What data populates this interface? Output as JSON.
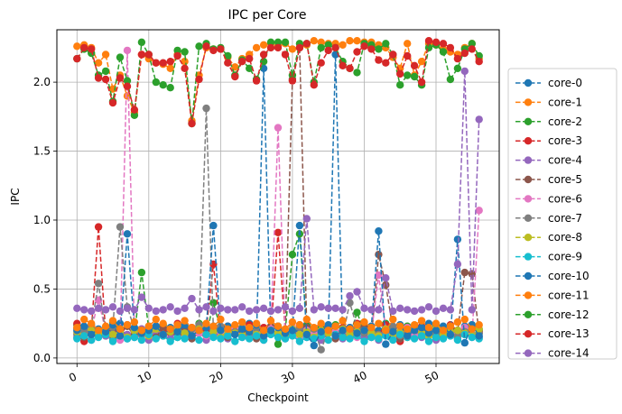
{
  "chart_data": {
    "type": "line",
    "title": "IPC per Core",
    "xlabel": "Checkpoint",
    "ylabel": "IPC",
    "xlim": [
      -2.8,
      58.8
    ],
    "ylim": [
      -0.04,
      2.38
    ],
    "xticks": [
      0,
      10,
      20,
      30,
      40,
      50
    ],
    "yticks": [
      0.0,
      0.5,
      1.0,
      1.5,
      2.0
    ],
    "ytick_labels": [
      "0.0",
      "0.5",
      "1.0",
      "1.5",
      "2.0"
    ],
    "grid": true,
    "legend_position": "right-outside",
    "series": [
      {
        "name": "core-0",
        "color": "#1f77b4",
        "values": [
          0.21,
          0.19,
          0.24,
          0.16,
          0.22,
          0.18,
          0.25,
          0.14,
          0.21,
          0.19,
          0.23,
          0.15,
          0.2,
          0.22,
          0.18,
          0.24,
          0.16,
          0.21,
          0.19,
          0.23,
          0.17,
          0.2,
          0.22,
          0.18,
          0.25,
          0.15,
          2.1,
          0.19,
          0.23,
          0.16,
          0.21,
          0.2,
          0.24,
          0.17,
          0.22,
          0.18,
          2.2,
          0.15,
          0.21,
          0.19,
          0.23,
          0.16,
          0.2,
          0.22,
          0.18,
          0.24,
          0.17,
          0.21,
          0.19,
          0.25,
          0.15,
          0.2,
          0.22,
          0.18,
          0.23,
          0.16,
          0.21
        ]
      },
      {
        "name": "core-1",
        "color": "#ff7f0e",
        "values": [
          2.26,
          2.27,
          2.25,
          2.14,
          2.2,
          1.95,
          2.05,
          1.9,
          1.78,
          2.2,
          2.17,
          2.14,
          2.13,
          2.1,
          2.2,
          2.15,
          1.72,
          2.05,
          2.25,
          2.24,
          2.24,
          2.18,
          2.11,
          2.17,
          2.2,
          2.25,
          2.27,
          2.28,
          2.26,
          2.28,
          2.24,
          2.25,
          2.27,
          2.3,
          2.29,
          2.28,
          2.28,
          2.27,
          2.3,
          2.3,
          2.29,
          2.29,
          2.27,
          2.25,
          2.18,
          2.1,
          2.28,
          2.05,
          2.15,
          2.28,
          2.27,
          2.24,
          2.22,
          2.2,
          2.25,
          2.28,
          2.17
        ]
      },
      {
        "name": "core-2",
        "color": "#2ca02c",
        "values": [
          0.24,
          0.18,
          0.22,
          0.2,
          0.16,
          0.26,
          0.19,
          0.23,
          0.17,
          0.62,
          0.21,
          0.18,
          0.24,
          0.2,
          0.15,
          0.22,
          0.19,
          0.25,
          0.16,
          0.4,
          0.21,
          0.18,
          0.23,
          0.2,
          0.17,
          0.24,
          0.19,
          0.22,
          0.1,
          0.2,
          0.75,
          0.9,
          0.23,
          0.17,
          0.21,
          0.18,
          0.24,
          0.2,
          0.16,
          0.33,
          0.19,
          0.22,
          0.17,
          0.25,
          0.2,
          0.18,
          0.23,
          0.15,
          0.21,
          0.19,
          0.24,
          0.17,
          0.22,
          0.2,
          0.18,
          0.24,
          0.2
        ]
      },
      {
        "name": "core-3",
        "color": "#d62728",
        "values": [
          0.25,
          0.12,
          0.2,
          0.95,
          0.18,
          0.22,
          0.16,
          0.24,
          0.19,
          0.21,
          0.17,
          0.23,
          0.2,
          0.18,
          0.25,
          0.16,
          0.22,
          0.19,
          0.21,
          0.68,
          0.17,
          0.23,
          0.2,
          0.18,
          0.24,
          0.16,
          0.22,
          0.19,
          0.91,
          0.2,
          0.18,
          0.24,
          0.17,
          0.21,
          0.2,
          0.23,
          0.16,
          0.22,
          0.19,
          0.25,
          0.18,
          0.21,
          0.17,
          0.24,
          0.2,
          0.12,
          0.22,
          0.19,
          0.23,
          0.16,
          0.21,
          0.18,
          0.24,
          0.2,
          0.17,
          0.22,
          0.19
        ]
      },
      {
        "name": "core-4",
        "color": "#9467bd",
        "values": [
          0.15,
          0.18,
          0.13,
          0.2,
          0.16,
          0.14,
          0.19,
          0.17,
          0.15,
          0.21,
          0.13,
          0.18,
          0.16,
          0.14,
          0.2,
          0.17,
          0.15,
          0.19,
          0.13,
          0.18,
          0.16,
          0.14,
          0.21,
          0.17,
          0.15,
          0.19,
          0.13,
          0.18,
          0.16,
          0.14,
          0.2,
          0.17,
          0.15,
          0.19,
          0.13,
          0.18,
          0.16,
          0.14,
          0.21,
          0.17,
          0.15,
          0.19,
          0.13,
          0.18,
          0.16,
          0.14,
          0.2,
          0.17,
          0.15,
          0.19,
          0.13,
          0.18,
          0.16,
          0.14,
          0.21,
          0.17,
          0.15
        ]
      },
      {
        "name": "core-5",
        "color": "#8c564b",
        "values": [
          0.22,
          0.15,
          0.19,
          0.17,
          0.21,
          0.14,
          0.18,
          0.23,
          0.16,
          0.2,
          0.18,
          0.15,
          0.22,
          0.19,
          0.17,
          0.21,
          0.14,
          0.18,
          0.16,
          0.2,
          0.22,
          0.15,
          0.19,
          0.17,
          0.21,
          0.14,
          0.18,
          0.23,
          0.16,
          0.2,
          2.02,
          2.25,
          0.22,
          0.19,
          0.17,
          0.21,
          0.14,
          0.18,
          0.16,
          0.2,
          0.22,
          0.15,
          0.75,
          0.53,
          0.21,
          0.14,
          0.18,
          0.23,
          0.16,
          0.2,
          0.18,
          0.15,
          0.22,
          0.19,
          0.62,
          0.61,
          0.18
        ]
      },
      {
        "name": "core-6",
        "color": "#e377c2",
        "values": [
          0.18,
          0.22,
          0.2,
          0.42,
          0.19,
          0.17,
          0.13,
          2.23,
          0.2,
          0.16,
          0.18,
          0.21,
          0.17,
          0.19,
          0.22,
          0.15,
          0.2,
          0.18,
          0.16,
          0.21,
          0.19,
          0.17,
          0.22,
          0.15,
          0.2,
          0.18,
          0.16,
          0.21,
          1.67,
          0.17,
          0.22,
          0.15,
          0.2,
          0.18,
          0.16,
          0.21,
          0.19,
          0.17,
          0.22,
          0.15,
          0.2,
          0.18,
          0.6,
          0.21,
          0.19,
          0.17,
          0.22,
          0.15,
          0.2,
          0.18,
          0.16,
          0.21,
          0.19,
          0.17,
          0.22,
          0.15,
          1.07
        ]
      },
      {
        "name": "core-7",
        "color": "#7f7f7f",
        "values": [
          0.17,
          0.2,
          0.23,
          0.54,
          0.18,
          0.22,
          0.95,
          0.37,
          0.21,
          0.17,
          0.2,
          0.23,
          0.16,
          0.19,
          0.22,
          0.18,
          0.21,
          0.24,
          1.81,
          0.2,
          0.23,
          0.16,
          0.19,
          0.22,
          0.18,
          0.21,
          0.17,
          0.2,
          0.23,
          0.16,
          0.19,
          0.22,
          0.18,
          0.21,
          0.06,
          0.2,
          0.23,
          0.16,
          0.4,
          0.22,
          0.18,
          0.21,
          0.17,
          0.2,
          0.23,
          0.16,
          0.19,
          0.22,
          0.18,
          0.21,
          0.17,
          0.2,
          0.23,
          0.16,
          0.19,
          0.22,
          0.18
        ]
      },
      {
        "name": "core-8",
        "color": "#bcbd22",
        "values": [
          0.19,
          0.16,
          0.2,
          0.18,
          0.21,
          0.17,
          0.19,
          0.15,
          0.2,
          0.18,
          0.16,
          0.21,
          0.17,
          0.19,
          0.2,
          0.18,
          0.16,
          0.21,
          0.17,
          0.19,
          0.15,
          0.2,
          0.18,
          0.16,
          0.21,
          0.17,
          0.19,
          0.2,
          0.18,
          0.16,
          0.21,
          0.17,
          0.19,
          0.15,
          0.2,
          0.18,
          0.16,
          0.21,
          0.17,
          0.19,
          0.2,
          0.18,
          0.16,
          0.21,
          0.17,
          0.19,
          0.15,
          0.2,
          0.18,
          0.16,
          0.21,
          0.17,
          0.19,
          0.2,
          0.18,
          0.16,
          0.21
        ]
      },
      {
        "name": "core-9",
        "color": "#17becf",
        "values": [
          0.14,
          0.16,
          0.13,
          0.15,
          0.17,
          0.12,
          0.16,
          0.14,
          0.15,
          0.13,
          0.17,
          0.14,
          0.16,
          0.12,
          0.15,
          0.14,
          0.16,
          0.13,
          0.17,
          0.15,
          0.14,
          0.16,
          0.12,
          0.15,
          0.14,
          0.16,
          0.13,
          0.17,
          0.15,
          0.14,
          0.16,
          0.12,
          0.15,
          0.14,
          0.16,
          0.13,
          0.17,
          0.15,
          0.14,
          0.16,
          0.12,
          0.15,
          0.14,
          0.16,
          0.13,
          0.17,
          0.15,
          0.14,
          0.16,
          0.12,
          0.15,
          0.14,
          0.16,
          0.13,
          0.17,
          0.15,
          0.14
        ]
      },
      {
        "name": "core-10",
        "color": "#1f77b4",
        "values": [
          0.2,
          0.23,
          0.17,
          0.21,
          0.19,
          0.24,
          0.16,
          0.9,
          0.22,
          0.18,
          0.2,
          0.23,
          0.17,
          0.21,
          0.19,
          0.24,
          0.16,
          0.2,
          0.22,
          0.96,
          0.2,
          0.23,
          0.17,
          0.21,
          0.19,
          0.24,
          0.16,
          0.2,
          0.22,
          0.18,
          0.2,
          0.96,
          0.17,
          0.09,
          0.19,
          0.24,
          0.16,
          0.2,
          0.22,
          0.18,
          0.2,
          0.23,
          0.92,
          0.1,
          0.19,
          0.24,
          0.16,
          0.2,
          0.22,
          0.18,
          0.2,
          0.23,
          0.17,
          0.86,
          0.11,
          0.24,
          0.16
        ]
      },
      {
        "name": "core-11",
        "color": "#ff7f0e",
        "values": [
          0.22,
          0.28,
          0.25,
          0.2,
          0.23,
          0.27,
          0.21,
          0.24,
          0.26,
          0.2,
          0.23,
          0.28,
          0.25,
          0.21,
          0.24,
          0.27,
          0.22,
          0.2,
          0.25,
          0.23,
          0.28,
          0.21,
          0.24,
          0.26,
          0.22,
          0.25,
          0.2,
          0.27,
          0.23,
          0.21,
          0.26,
          0.24,
          0.28,
          0.22,
          0.25,
          0.2,
          0.23,
          0.27,
          0.21,
          0.24,
          0.26,
          0.22,
          0.25,
          0.2,
          0.28,
          0.23,
          0.21,
          0.24,
          0.27,
          0.22,
          0.25,
          0.2,
          0.23,
          0.26,
          0.28,
          0.21,
          0.24
        ]
      },
      {
        "name": "core-12",
        "color": "#2ca02c",
        "values": [
          2.17,
          2.24,
          2.21,
          2.05,
          2.08,
          1.86,
          2.18,
          2.01,
          1.76,
          2.29,
          2.2,
          2.0,
          1.98,
          1.96,
          2.23,
          2.22,
          1.7,
          2.26,
          2.28,
          2.24,
          2.25,
          2.19,
          2.05,
          2.16,
          2.1,
          2.02,
          2.15,
          2.29,
          2.29,
          2.29,
          2.05,
          2.28,
          2.28,
          2.0,
          2.25,
          2.27,
          2.25,
          2.15,
          2.1,
          2.07,
          2.28,
          2.27,
          2.24,
          2.28,
          2.2,
          1.98,
          2.05,
          2.04,
          1.98,
          2.25,
          2.27,
          2.22,
          2.02,
          2.1,
          2.24,
          2.28,
          2.19
        ]
      },
      {
        "name": "core-13",
        "color": "#d62728",
        "values": [
          2.17,
          2.25,
          2.24,
          2.03,
          2.02,
          1.85,
          2.03,
          1.97,
          1.8,
          2.2,
          2.2,
          2.14,
          2.14,
          2.15,
          2.19,
          2.1,
          1.7,
          2.02,
          2.26,
          2.23,
          2.24,
          2.14,
          2.04,
          2.15,
          2.17,
          2.01,
          2.2,
          2.25,
          2.25,
          2.2,
          2.01,
          2.25,
          2.28,
          1.98,
          2.14,
          2.23,
          2.25,
          2.12,
          2.1,
          2.22,
          2.26,
          2.24,
          2.16,
          2.14,
          2.2,
          2.06,
          2.19,
          2.12,
          2.0,
          2.3,
          2.29,
          2.28,
          2.25,
          2.17,
          2.21,
          2.24,
          2.15
        ]
      },
      {
        "name": "core-14",
        "color": "#9467bd",
        "values": [
          0.36,
          0.35,
          0.34,
          0.36,
          0.35,
          0.37,
          0.34,
          0.36,
          0.35,
          0.44,
          0.36,
          0.34,
          0.35,
          0.37,
          0.34,
          0.36,
          0.43,
          0.35,
          0.37,
          0.34,
          0.36,
          0.35,
          0.35,
          0.37,
          0.34,
          0.35,
          0.36,
          0.34,
          0.35,
          0.37,
          0.34,
          0.36,
          1.01,
          0.35,
          0.37,
          0.36,
          0.36,
          0.35,
          0.45,
          0.48,
          0.36,
          0.35,
          0.35,
          0.58,
          0.34,
          0.36,
          0.35,
          0.34,
          0.35,
          0.37,
          0.34,
          0.36,
          0.35,
          0.68,
          2.08,
          0.35,
          1.73
        ]
      }
    ]
  }
}
